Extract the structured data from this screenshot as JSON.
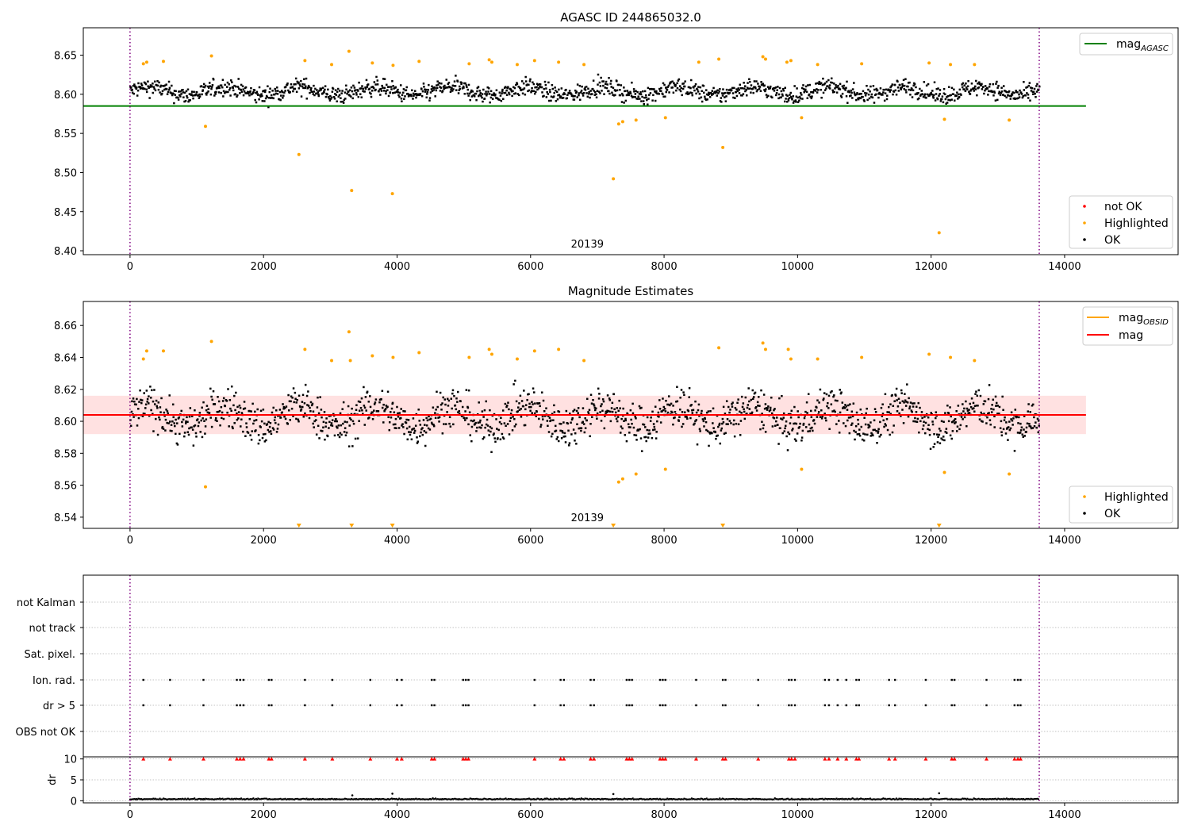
{
  "colors": {
    "ok": "#000000",
    "highlighted": "#ffa500",
    "not_ok": "#ff0000",
    "mag_agasc_line": "#008000",
    "mag_obsid_line": "#ffa500",
    "mag_line": "#ff0000",
    "mag_band": "#ffc8c8",
    "obsid_marker": "#800080",
    "grid": "#b0b0b0"
  },
  "chart_data": [
    {
      "type": "scatter",
      "title": "AGASC ID 244865032.0",
      "xlim": [
        -700,
        15700
      ],
      "ylim": [
        8.395,
        8.685
      ],
      "x_ticks": [
        0,
        2000,
        4000,
        6000,
        8000,
        10000,
        12000,
        14000
      ],
      "y_ticks": [
        8.4,
        8.45,
        8.5,
        8.55,
        8.6,
        8.65
      ],
      "y_tick_labels": [
        "8.40",
        "8.45",
        "8.50",
        "8.55",
        "8.60",
        "8.65"
      ],
      "obsid_label": "20139",
      "obsid_boundaries": [
        0,
        13620
      ],
      "x_range": [
        0,
        13620
      ],
      "mag_agasc": 8.585,
      "mag_agasc_xrange": [
        -700,
        14320
      ],
      "ok_band": {
        "center": 8.604,
        "spread": 0.01
      },
      "highlighted_points": [
        [
          200,
          8.639
        ],
        [
          250,
          8.641
        ],
        [
          500,
          8.642
        ],
        [
          1130,
          8.559
        ],
        [
          1220,
          8.649
        ],
        [
          2530,
          8.523
        ],
        [
          2620,
          8.643
        ],
        [
          3020,
          8.638
        ],
        [
          3280,
          8.655
        ],
        [
          3320,
          8.477
        ],
        [
          3630,
          8.64
        ],
        [
          3930,
          8.473
        ],
        [
          3940,
          8.637
        ],
        [
          4330,
          8.642
        ],
        [
          5080,
          8.639
        ],
        [
          5380,
          8.644
        ],
        [
          5420,
          8.641
        ],
        [
          5800,
          8.638
        ],
        [
          6060,
          8.643
        ],
        [
          6420,
          8.641
        ],
        [
          6800,
          8.638
        ],
        [
          7240,
          8.492
        ],
        [
          7320,
          8.562
        ],
        [
          7380,
          8.565
        ],
        [
          7580,
          8.567
        ],
        [
          8020,
          8.57
        ],
        [
          8520,
          8.641
        ],
        [
          8820,
          8.645
        ],
        [
          8880,
          8.532
        ],
        [
          9480,
          8.648
        ],
        [
          9520,
          8.645
        ],
        [
          9840,
          8.641
        ],
        [
          9900,
          8.643
        ],
        [
          10060,
          8.57
        ],
        [
          10300,
          8.638
        ],
        [
          10960,
          8.639
        ],
        [
          11970,
          8.64
        ],
        [
          12120,
          8.423
        ],
        [
          12200,
          8.568
        ],
        [
          12290,
          8.638
        ],
        [
          12650,
          8.638
        ],
        [
          13170,
          8.567
        ]
      ],
      "not_ok_points": [],
      "legend_lines": [
        {
          "label": "mag",
          "sub": "AGASC"
        }
      ],
      "legend_points": [
        {
          "label": "not OK"
        },
        {
          "label": "Highlighted"
        },
        {
          "label": "OK"
        }
      ]
    },
    {
      "type": "scatter",
      "title": "Magnitude Estimates",
      "xlim": [
        -700,
        15700
      ],
      "ylim": [
        8.533,
        8.675
      ],
      "x_ticks": [
        0,
        2000,
        4000,
        6000,
        8000,
        10000,
        12000,
        14000
      ],
      "y_ticks": [
        8.54,
        8.56,
        8.58,
        8.6,
        8.62,
        8.64,
        8.66
      ],
      "y_tick_labels": [
        "8.54",
        "8.56",
        "8.58",
        "8.60",
        "8.62",
        "8.64",
        "8.66"
      ],
      "obsid_label": "20139",
      "obsid_boundaries": [
        0,
        13620
      ],
      "x_range": [
        0,
        13620
      ],
      "mag": 8.604,
      "mag_band": [
        8.592,
        8.616
      ],
      "mag_obsid": 8.604,
      "ok_band": {
        "center": 8.603,
        "spread": 0.012
      },
      "highlighted_points": [
        [
          200,
          8.639
        ],
        [
          250,
          8.644
        ],
        [
          500,
          8.644
        ],
        [
          1130,
          8.559
        ],
        [
          1220,
          8.65
        ],
        [
          2620,
          8.645
        ],
        [
          3020,
          8.638
        ],
        [
          3280,
          8.656
        ],
        [
          3300,
          8.638
        ],
        [
          3630,
          8.641
        ],
        [
          3940,
          8.64
        ],
        [
          4330,
          8.643
        ],
        [
          5080,
          8.64
        ],
        [
          5380,
          8.645
        ],
        [
          5420,
          8.642
        ],
        [
          5800,
          8.639
        ],
        [
          6060,
          8.644
        ],
        [
          6420,
          8.645
        ],
        [
          6800,
          8.638
        ],
        [
          7320,
          8.562
        ],
        [
          7380,
          8.564
        ],
        [
          7580,
          8.567
        ],
        [
          8020,
          8.57
        ],
        [
          8820,
          8.646
        ],
        [
          9480,
          8.649
        ],
        [
          9520,
          8.645
        ],
        [
          9860,
          8.645
        ],
        [
          9900,
          8.639
        ],
        [
          10060,
          8.57
        ],
        [
          10300,
          8.639
        ],
        [
          10960,
          8.64
        ],
        [
          11970,
          8.642
        ],
        [
          12200,
          8.568
        ],
        [
          12290,
          8.64
        ],
        [
          12650,
          8.638
        ],
        [
          13170,
          8.567
        ]
      ],
      "below_range_x": [
        2530,
        3320,
        3930,
        7240,
        8880,
        12120
      ],
      "legend_lines": [
        {
          "label": "mag",
          "sub": "OBSID"
        },
        {
          "label": "mag",
          "sub": ""
        }
      ],
      "legend_points": [
        {
          "label": "Highlighted"
        },
        {
          "label": "OK"
        }
      ]
    },
    {
      "type": "scatter",
      "title": "",
      "xlim": [
        -700,
        15700
      ],
      "x_ticks": [
        0,
        2000,
        4000,
        6000,
        8000,
        10000,
        12000,
        14000
      ],
      "flag_labels": [
        "not Kalman",
        "not track",
        "Sat. pixel.",
        "Ion. rad.",
        "dr > 5",
        "OBS not OK"
      ],
      "flag_x": [
        200,
        600,
        1100,
        1600,
        1650,
        1700,
        2080,
        2120,
        2620,
        3030,
        3600,
        4000,
        4070,
        4520,
        4560,
        4990,
        5030,
        5070,
        6060,
        6450,
        6500,
        6900,
        6950,
        7440,
        7480,
        7520,
        7940,
        7980,
        8020,
        8480,
        8880,
        8920,
        9410,
        9870,
        9910,
        9960,
        10410,
        10470,
        10600,
        10730,
        10880,
        10920,
        11370,
        11460,
        11920,
        12310,
        12350,
        12830,
        13250,
        13300,
        13340
      ],
      "dr_ylabel": "dr",
      "dr_ylim": [
        -0.5,
        10.5
      ],
      "dr_y_ticks": [
        0,
        5,
        10
      ],
      "dr_base": 0.3,
      "dr_spikes": [
        [
          3330,
          1.3
        ],
        [
          3930,
          1.7
        ],
        [
          7240,
          1.6
        ],
        [
          12120,
          1.8
        ]
      ],
      "dr_capped_value": 10
    }
  ]
}
